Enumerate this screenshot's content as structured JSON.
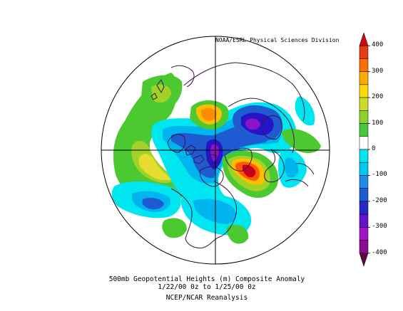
{
  "map": {
    "credit": "NOAA/ESRL Physical Sciences Division",
    "projection": "north polar stereographic",
    "field": "500mb geopotential height composite anomaly",
    "anomaly_colors": {
      "400": "#c8001e",
      "300": "#ff5a00",
      "250": "#ff8c00",
      "200": "#ffbe00",
      "150": "#e6dc32",
      "120": "#a0d228",
      "100": "#4cc830",
      "0": "#ffffff",
      "-100": "#00e6f0",
      "-150": "#00b4f0",
      "-200": "#1e5ad2",
      "-250": "#2814c8",
      "-300": "#8c14c8",
      "-350": "#a000b4",
      "-400": "#5a0a46"
    },
    "coastline_color": "#3c1446"
  },
  "caption": {
    "line1": "500mb Geopotential Heights (m)   Composite Anomaly",
    "line2": "1/22/00 0z  to 1/25/00 0z",
    "line3": "NCEP/NCAR Reanalysis"
  },
  "colorbar": {
    "labels": [
      "400",
      "300",
      "200",
      "100",
      "0",
      "-100",
      "-200",
      "-300",
      "-400"
    ],
    "colors": [
      "#c80a1e",
      "#e63c14",
      "#ff6e00",
      "#ffaa00",
      "#ffdc00",
      "#c8dc28",
      "#8cd228",
      "#46c83c",
      "#ffffff",
      "#00e6f0",
      "#00c8f0",
      "#1e8ce6",
      "#1e5ad2",
      "#2828c8",
      "#6414c8",
      "#a014c8",
      "#8c0a8c",
      "#5a0a46"
    ]
  }
}
